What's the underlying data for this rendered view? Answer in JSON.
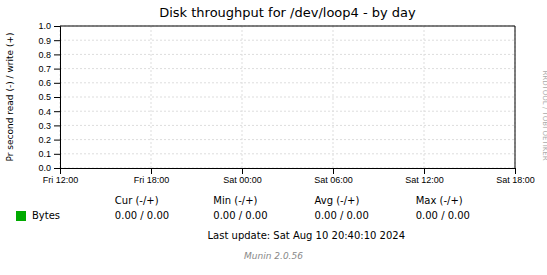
{
  "chart_data": {
    "type": "line",
    "title": "Disk throughput for /dev/loop4 - by day",
    "y_label": "Pr second read (-) / write (+)",
    "categories": [
      "Fri 12:00",
      "Fri 18:00",
      "Sat 00:00",
      "Sat 06:00",
      "Sat 12:00",
      "Sat 18:00"
    ],
    "ylim": [
      0.0,
      1.0
    ],
    "yticks": [
      {
        "value": 0.0,
        "label": "0.0"
      },
      0.1,
      0.2,
      0.3,
      0.4,
      0.5,
      0.6,
      0.7,
      0.8,
      0.9,
      {
        "value": 1.0,
        "label": "1.0"
      }
    ],
    "grid": true,
    "series": [
      {
        "name": "Bytes",
        "color": "#00aa00",
        "stats": [
          "0.00 / 0.00",
          "0.00 / 0.00",
          "0.00 / 0.00",
          "0.00 / 0.00"
        ]
      }
    ],
    "stat_headers": [
      "Cur (-/+)",
      "Min (-/+)",
      "Avg (-/+)",
      "Max (-/+)"
    ],
    "annotations": [
      "Last update: Sat Aug 10 20:40:10 2024",
      "Munin 2.0.56",
      "RRDTOOL / TOBI OETIKER"
    ]
  }
}
